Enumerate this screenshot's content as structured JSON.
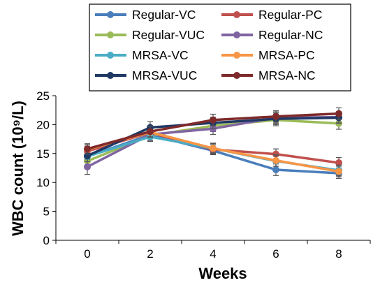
{
  "chart_data": {
    "type": "line",
    "title": "",
    "xlabel": "Weeks",
    "ylabel": "WBC count (10⁹/L)",
    "x": [
      0,
      2,
      4,
      6,
      8
    ],
    "xticks": [
      "0",
      "2",
      "4",
      "6",
      "8"
    ],
    "yticks": [
      "0",
      "5",
      "10",
      "15",
      "20",
      "25"
    ],
    "ylim": [
      0,
      25
    ],
    "grid": false,
    "legend_position": "top",
    "series": [
      {
        "name": "Regular-VC",
        "color": "#4a7ebb",
        "values": [
          14.5,
          18.2,
          15.5,
          12.2,
          11.6
        ],
        "err": [
          0.9,
          0.9,
          0.7,
          1.0,
          0.9
        ]
      },
      {
        "name": "Regular-PC",
        "color": "#c0504d",
        "values": [
          15.4,
          18.6,
          15.7,
          14.9,
          13.4
        ],
        "err": [
          0.9,
          1.0,
          0.8,
          0.9,
          0.9
        ]
      },
      {
        "name": "Regular-VUC",
        "color": "#9bbb59",
        "values": [
          13.7,
          18.1,
          19.8,
          20.8,
          20.2
        ],
        "err": [
          1.0,
          1.0,
          1.0,
          1.0,
          1.0
        ]
      },
      {
        "name": "Regular-NC",
        "color": "#8064a2",
        "values": [
          12.7,
          18.3,
          19.3,
          21.2,
          21.3
        ],
        "err": [
          1.3,
          1.0,
          1.0,
          1.0,
          0.9
        ]
      },
      {
        "name": "MRSA-VC",
        "color": "#4bacc6",
        "values": [
          14.5,
          17.9,
          15.9,
          13.7,
          12.1
        ],
        "err": [
          0.9,
          0.8,
          0.8,
          0.9,
          0.9
        ]
      },
      {
        "name": "MRSA-PC",
        "color": "#f79646",
        "values": [
          15.7,
          18.7,
          15.9,
          13.8,
          11.9
        ],
        "err": [
          0.9,
          0.9,
          0.9,
          1.0,
          0.9
        ]
      },
      {
        "name": "MRSA-VUC",
        "color": "#1f3864",
        "values": [
          14.6,
          19.5,
          20.3,
          21.0,
          21.2
        ],
        "err": [
          1.0,
          1.0,
          1.0,
          1.0,
          1.0
        ]
      },
      {
        "name": "MRSA-NC",
        "color": "#7f2a2a",
        "values": [
          15.8,
          18.8,
          20.8,
          21.4,
          21.9
        ],
        "err": [
          0.9,
          0.9,
          1.0,
          1.0,
          1.0
        ]
      }
    ]
  }
}
